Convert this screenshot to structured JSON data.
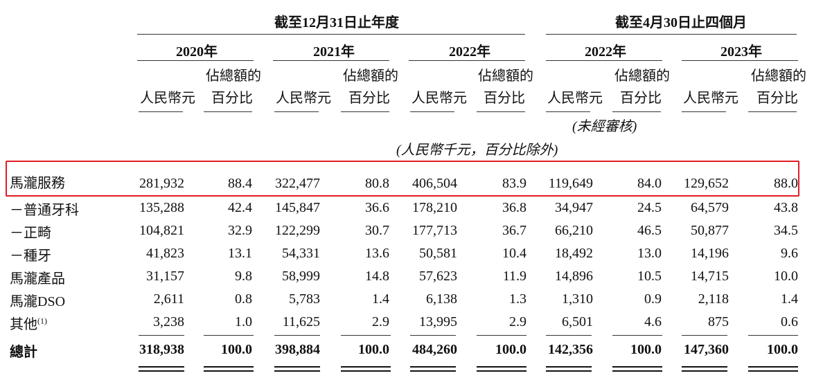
{
  "groups": [
    {
      "label": "截至12月31日止年度"
    },
    {
      "label": "截至4月30日止四個月"
    }
  ],
  "years": [
    "2020年",
    "2021年",
    "2022年",
    "2022年",
    "2023年"
  ],
  "col_headers": {
    "rmb": "人民幣元",
    "pct_line1": "佔總額的",
    "pct_line2": "百分比"
  },
  "unaudited": "(未經審核)",
  "units_note": "(人民幣千元，百分比除外)",
  "rows": [
    {
      "label": "馬瀧服務",
      "values": [
        "281,932",
        "88.4",
        "322,477",
        "80.8",
        "406,504",
        "83.9",
        "119,649",
        "84.0",
        "129,652",
        "88.0"
      ]
    },
    {
      "label": "－普通牙科",
      "values": [
        "135,288",
        "42.4",
        "145,847",
        "36.6",
        "178,210",
        "36.8",
        "34,947",
        "24.5",
        "64,579",
        "43.8"
      ]
    },
    {
      "label": "－正畸",
      "values": [
        "104,821",
        "32.9",
        "122,299",
        "30.7",
        "177,713",
        "36.7",
        "66,210",
        "46.5",
        "50,877",
        "34.5"
      ]
    },
    {
      "label": "－種牙",
      "values": [
        "41,823",
        "13.1",
        "54,331",
        "13.6",
        "50,581",
        "10.4",
        "18,492",
        "13.0",
        "14,196",
        "9.6"
      ]
    },
    {
      "label": "馬瀧產品",
      "values": [
        "31,157",
        "9.8",
        "58,999",
        "14.8",
        "57,623",
        "11.9",
        "14,896",
        "10.5",
        "14,715",
        "10.0"
      ]
    },
    {
      "label": "馬瀧DSO",
      "values": [
        "2,611",
        "0.8",
        "5,783",
        "1.4",
        "6,138",
        "1.3",
        "1,310",
        "0.9",
        "2,118",
        "1.4"
      ]
    },
    {
      "label": "其他",
      "label_sup": "(1)",
      "values": [
        "3,238",
        "1.0",
        "11,625",
        "2.9",
        "13,995",
        "2.9",
        "6,501",
        "4.6",
        "875",
        "0.6"
      ]
    }
  ],
  "total": {
    "label": "總計",
    "values": [
      "318,938",
      "100.0",
      "398,884",
      "100.0",
      "484,260",
      "100.0",
      "142,356",
      "100.0",
      "147,360",
      "100.0"
    ]
  },
  "highlight_color": "#e31b23"
}
